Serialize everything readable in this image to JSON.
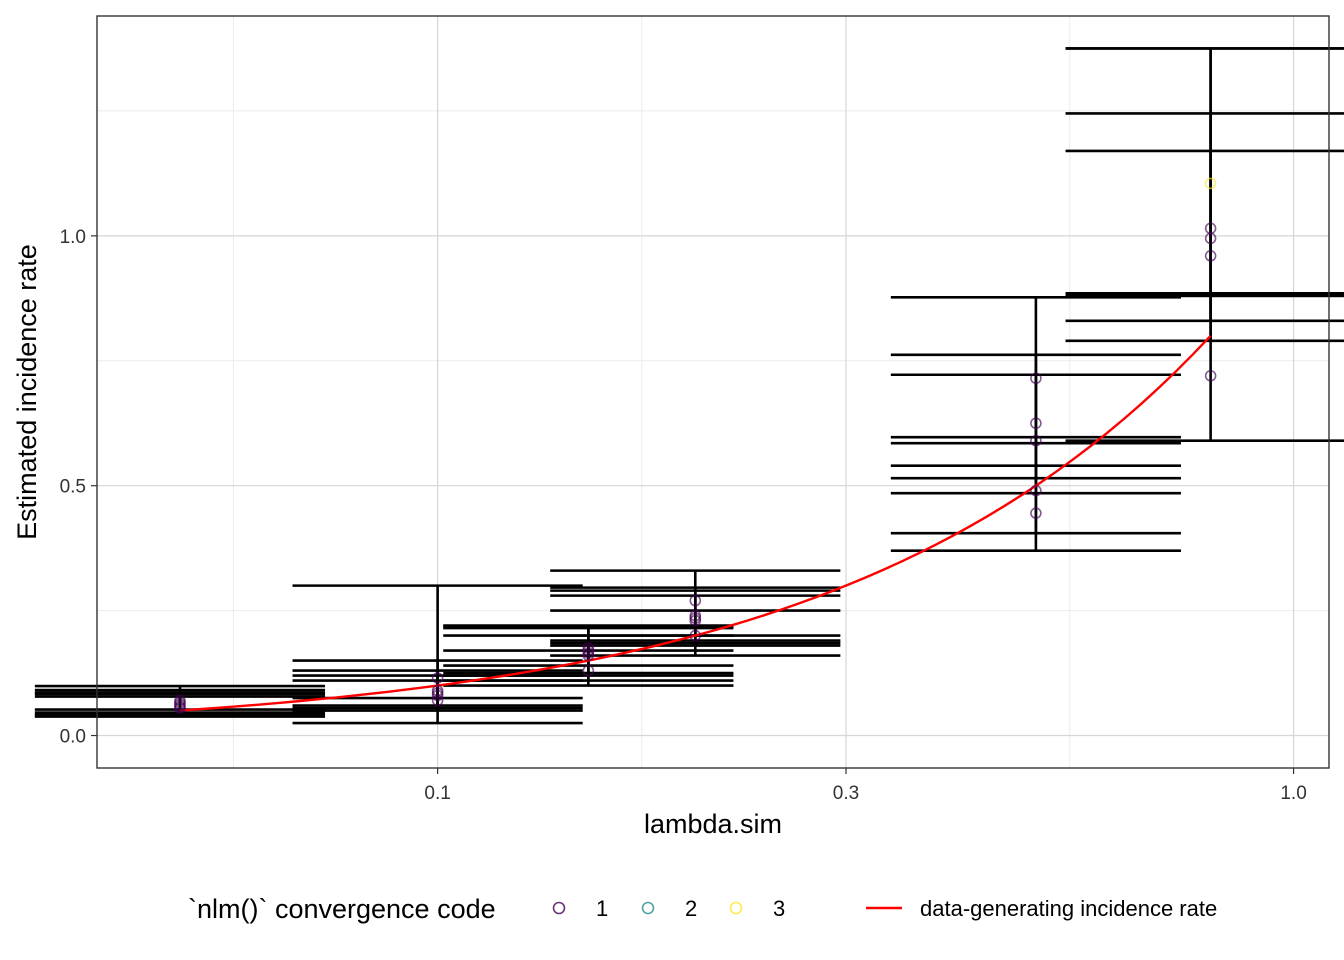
{
  "chart_data": {
    "type": "scatter",
    "xlabel": "lambda.sim",
    "ylabel": "Estimated incidence rate",
    "x_scale": "log10",
    "xlim": [
      0.04,
      1.1
    ],
    "ylim": [
      -0.065,
      1.44
    ],
    "x_ticks": [
      {
        "value": 0.1,
        "label": "0.1"
      },
      {
        "value": 0.3,
        "label": "0.3"
      },
      {
        "value": 1.0,
        "label": "1.0"
      }
    ],
    "y_ticks": [
      {
        "value": 0.0,
        "label": "0.0"
      },
      {
        "value": 0.5,
        "label": "0.5"
      },
      {
        "value": 1.0,
        "label": "1.0"
      }
    ],
    "grid": true,
    "legend": {
      "position": "bottom",
      "title": "`nlm()` convergence code",
      "codes": [
        {
          "label": "1",
          "color": "#440154"
        },
        {
          "label": "2",
          "color": "#21908C"
        },
        {
          "label": "3",
          "color": "#FDE725"
        }
      ],
      "line_label": "data-generating incidence rate",
      "line_color": "#FF0000"
    },
    "groups": [
      {
        "lambda": 0.05,
        "points": [
          {
            "est": 0.058,
            "lower": 0.04,
            "upper": 0.083,
            "code": 1
          },
          {
            "est": 0.062,
            "lower": 0.042,
            "upper": 0.086,
            "code": 1
          },
          {
            "est": 0.066,
            "lower": 0.046,
            "upper": 0.091,
            "code": 1
          },
          {
            "est": 0.055,
            "lower": 0.038,
            "upper": 0.078,
            "code": 1
          },
          {
            "est": 0.07,
            "lower": 0.052,
            "upper": 0.099,
            "code": 1
          }
        ]
      },
      {
        "lambda": 0.1,
        "points": [
          {
            "est": 0.07,
            "lower": 0.025,
            "upper": 0.15,
            "code": 1
          },
          {
            "est": 0.08,
            "lower": 0.05,
            "upper": 0.12,
            "code": 1
          },
          {
            "est": 0.085,
            "lower": 0.055,
            "upper": 0.11,
            "code": 1
          },
          {
            "est": 0.09,
            "lower": 0.06,
            "upper": 0.13,
            "code": 1
          },
          {
            "est": 0.115,
            "lower": 0.075,
            "upper": 0.3,
            "code": 1
          }
        ]
      },
      {
        "lambda": 0.15,
        "points": [
          {
            "est": 0.13,
            "lower": 0.1,
            "upper": 0.17,
            "code": 1
          },
          {
            "est": 0.16,
            "lower": 0.11,
            "upper": 0.2,
            "code": 1
          },
          {
            "est": 0.165,
            "lower": 0.12,
            "upper": 0.215,
            "code": 1
          },
          {
            "est": 0.17,
            "lower": 0.125,
            "upper": 0.218,
            "code": 1
          },
          {
            "est": 0.175,
            "lower": 0.14,
            "upper": 0.22,
            "code": 1
          }
        ]
      },
      {
        "lambda": 0.2,
        "points": [
          {
            "est": 0.2,
            "lower": 0.16,
            "upper": 0.25,
            "code": 1
          },
          {
            "est": 0.23,
            "lower": 0.18,
            "upper": 0.28,
            "code": 1
          },
          {
            "est": 0.235,
            "lower": 0.185,
            "upper": 0.29,
            "code": 1
          },
          {
            "est": 0.24,
            "lower": 0.19,
            "upper": 0.296,
            "code": 1
          },
          {
            "est": 0.27,
            "lower": 0.2,
            "upper": 0.33,
            "code": 1
          }
        ]
      },
      {
        "lambda": 0.5,
        "points": [
          {
            "est": 0.445,
            "lower": 0.37,
            "upper": 0.54,
            "code": 1
          },
          {
            "est": 0.49,
            "lower": 0.405,
            "upper": 0.597,
            "code": 1
          },
          {
            "est": 0.59,
            "lower": 0.485,
            "upper": 0.722,
            "code": 1
          },
          {
            "est": 0.625,
            "lower": 0.515,
            "upper": 0.762,
            "code": 1
          },
          {
            "est": 0.715,
            "lower": 0.585,
            "upper": 0.877,
            "code": 1
          }
        ]
      },
      {
        "lambda": 0.8,
        "points": [
          {
            "est": 0.72,
            "lower": 0.59,
            "upper": 0.88,
            "code": 1
          },
          {
            "est": 0.96,
            "lower": 0.79,
            "upper": 1.17,
            "code": 1
          },
          {
            "est": 0.995,
            "lower": 0.83,
            "upper": 1.245,
            "code": 1
          },
          {
            "est": 1.015,
            "lower": 0.885,
            "upper": 1.375,
            "code": 1
          },
          {
            "est": 1.105,
            "lower": 0.88,
            "upper": 1.375,
            "code": 3
          }
        ]
      }
    ],
    "reference_line": {
      "name": "data-generating incidence rate",
      "x": [
        0.05,
        0.8
      ],
      "relation": "y = x"
    }
  }
}
